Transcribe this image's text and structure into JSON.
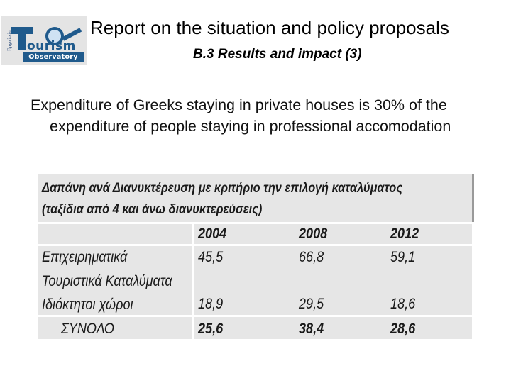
{
  "logo": {
    "side_text": "Εργαλείο",
    "word1": "ourism",
    "word2": "Observatory"
  },
  "header": {
    "title": "Report on the situation and policy proposals",
    "section": "B.3 Results and impact (3)"
  },
  "summary": "Expenditure of Greeks staying in private houses is 30% of the expenditure of people staying in professional accomodation",
  "table": {
    "caption_line1": "Δαπάνη ανά Διανυκτέρευση με κριτήριο την επιλογή καταλύματος",
    "caption_line2": "(ταξίδια από 4 και άνω διανυκτερεύσεις)",
    "columns": [
      "2004",
      "2008",
      "2012"
    ],
    "row_business_line1": "Επιχειρηματικά",
    "row_business_line2": "Τουριστικά Καταλύματα",
    "row_private": "Ιδιόκτητοι χώροι",
    "row_total": "ΣΥΝΟΛΟ",
    "business_values": [
      "45,5",
      "66,8",
      "59,1"
    ],
    "private_values": [
      "18,9",
      "29,5",
      "18,6"
    ],
    "total_values": [
      "25,6",
      "38,4",
      "28,6"
    ]
  }
}
